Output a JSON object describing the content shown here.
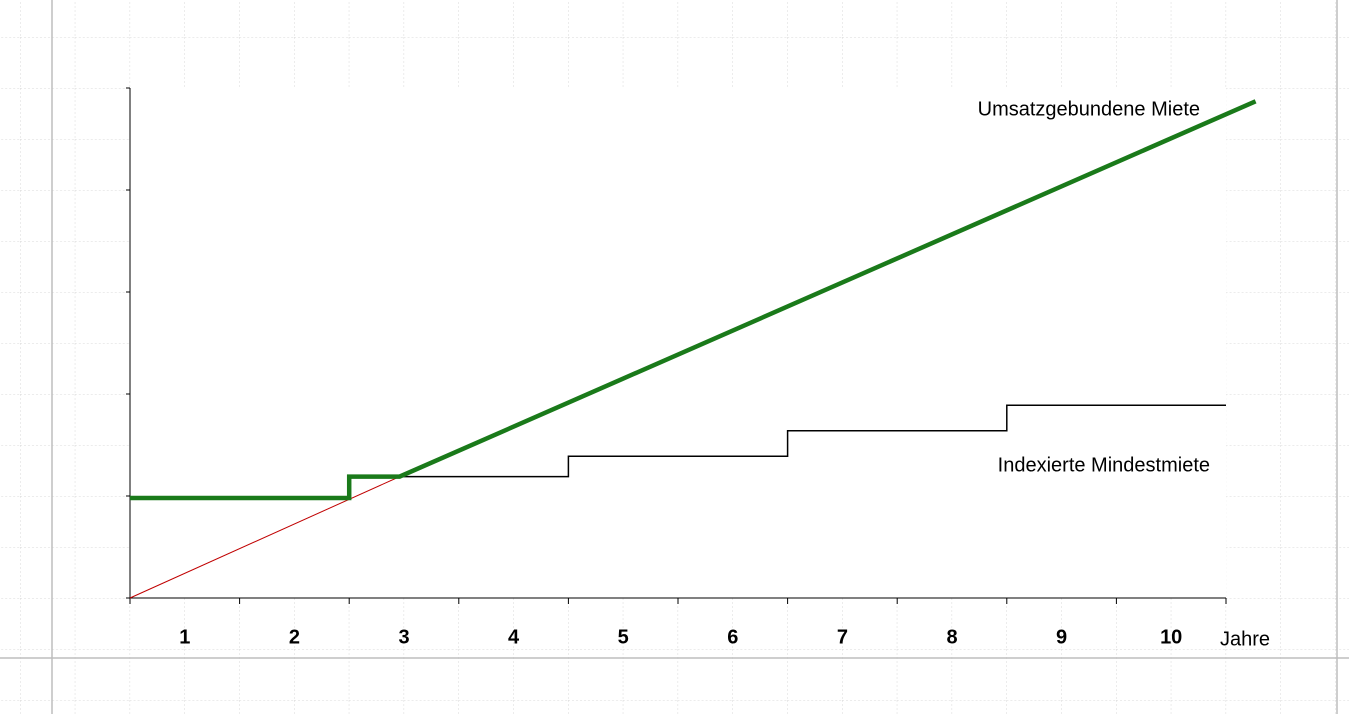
{
  "chart_data": {
    "type": "line",
    "x_label": "Jahre",
    "categories": [
      "1",
      "2",
      "3",
      "4",
      "5",
      "6",
      "7",
      "8",
      "9",
      "10"
    ],
    "xlim": [
      0,
      10
    ],
    "xticks": [
      0,
      1,
      2,
      3,
      4,
      5,
      6,
      7,
      8,
      9,
      10
    ],
    "ylim": [
      0,
      5
    ],
    "yticks": [
      0,
      1,
      2,
      3,
      4,
      5
    ],
    "series": [
      {
        "color": "#c00000",
        "width": 1,
        "x": [
          0,
          2.46
        ],
        "values": [
          0,
          1.19
        ]
      },
      {
        "name": "Indexierte Mindestmiete",
        "color": "#000000",
        "width": 1.5,
        "x": [
          2.46,
          4,
          4,
          6,
          6,
          8,
          8,
          10
        ],
        "values": [
          1.19,
          1.19,
          1.39,
          1.39,
          1.64,
          1.64,
          1.89,
          1.89
        ]
      },
      {
        "name": "Umsatzgebundene Miete",
        "color": "#1a7a1a",
        "width": 4.5,
        "x": [
          0,
          2,
          2,
          2.46,
          10.27
        ],
        "values": [
          0.98,
          0.98,
          1.19,
          1.19,
          4.87
        ]
      }
    ]
  }
}
